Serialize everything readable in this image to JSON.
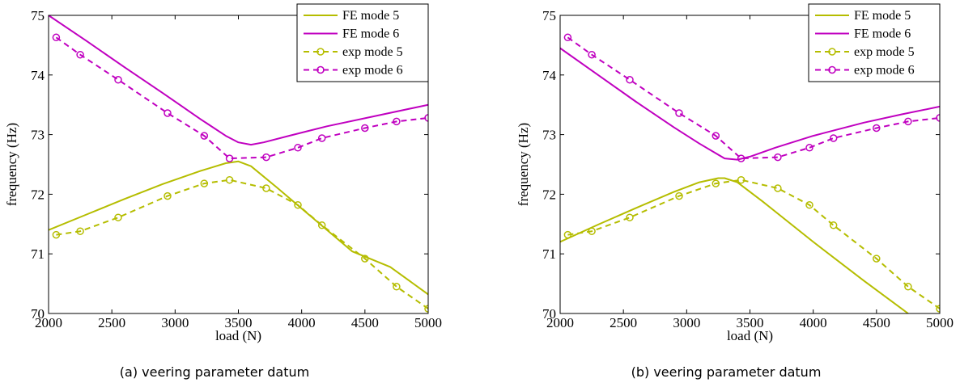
{
  "colors": {
    "mode5": "#b5bd00",
    "mode6": "#c000c0"
  },
  "chart_data": [
    {
      "type": "line",
      "caption": "(a) veering parameter datum",
      "xlabel": "load (N)",
      "ylabel": "frequency (Hz)",
      "xlim": [
        2000,
        5000
      ],
      "ylim": [
        70,
        75
      ],
      "xticks": [
        2000,
        2500,
        3000,
        3500,
        4000,
        4500,
        5000
      ],
      "yticks": [
        70,
        71,
        72,
        73,
        74,
        75
      ],
      "grid": false,
      "legend_position": "top-right",
      "series": [
        {
          "name": "FE mode 5",
          "style": "solid",
          "marker": "none",
          "color_key": "mode5",
          "x": [
            2000,
            2300,
            2600,
            2900,
            3200,
            3400,
            3500,
            3600,
            3800,
            4100,
            4400,
            4700,
            5000
          ],
          "y": [
            71.4,
            71.66,
            71.92,
            72.17,
            72.39,
            72.52,
            72.55,
            72.47,
            72.12,
            71.58,
            71.04,
            70.78,
            70.32
          ]
        },
        {
          "name": "FE mode 6",
          "style": "solid",
          "marker": "none",
          "color_key": "mode6",
          "x": [
            2000,
            2300,
            2600,
            2900,
            3200,
            3400,
            3500,
            3600,
            3700,
            3900,
            4200,
            4600,
            5000
          ],
          "y": [
            75.0,
            74.57,
            74.13,
            73.7,
            73.26,
            72.98,
            72.87,
            72.83,
            72.87,
            72.98,
            73.14,
            73.32,
            73.5
          ]
        },
        {
          "name": "exp mode 5",
          "style": "dashed",
          "marker": "circle",
          "color_key": "mode5",
          "x": [
            2060,
            2250,
            2550,
            2940,
            3230,
            3430,
            3720,
            3970,
            4160,
            4500,
            4750,
            5000
          ],
          "y": [
            71.32,
            71.38,
            71.61,
            71.97,
            72.18,
            72.24,
            72.1,
            71.82,
            71.48,
            70.92,
            70.45,
            70.08
          ]
        },
        {
          "name": "exp mode 6",
          "style": "dashed",
          "marker": "circle",
          "color_key": "mode6",
          "x": [
            2060,
            2250,
            2550,
            2940,
            3230,
            3430,
            3720,
            3970,
            4160,
            4500,
            4750,
            5000
          ],
          "y": [
            74.63,
            74.34,
            73.92,
            73.36,
            72.98,
            72.6,
            72.62,
            72.78,
            72.94,
            73.11,
            73.22,
            73.28
          ]
        }
      ]
    },
    {
      "type": "line",
      "caption": "(b) veering parameter datum",
      "xlabel": "load (N)",
      "ylabel": "frequency (Hz)",
      "xlim": [
        2000,
        5000
      ],
      "ylim": [
        70,
        75
      ],
      "xticks": [
        2000,
        2500,
        3000,
        3500,
        4000,
        4500,
        5000
      ],
      "yticks": [
        70,
        71,
        72,
        73,
        74,
        75
      ],
      "grid": false,
      "legend_position": "top-right",
      "series": [
        {
          "name": "FE mode 5",
          "style": "solid",
          "marker": "none",
          "color_key": "mode5",
          "x": [
            2000,
            2300,
            2600,
            2900,
            3100,
            3250,
            3300,
            3400,
            3600,
            4000,
            4400,
            4750
          ],
          "y": [
            71.2,
            71.49,
            71.77,
            72.04,
            72.2,
            72.27,
            72.27,
            72.2,
            71.88,
            71.2,
            70.55,
            70.0
          ]
        },
        {
          "name": "FE mode 6",
          "style": "solid",
          "marker": "none",
          "color_key": "mode6",
          "x": [
            2000,
            2300,
            2600,
            2900,
            3100,
            3300,
            3400,
            3500,
            3700,
            4000,
            4400,
            4700,
            5000
          ],
          "y": [
            74.45,
            74.0,
            73.55,
            73.12,
            72.85,
            72.6,
            72.58,
            72.63,
            72.78,
            72.98,
            73.2,
            73.34,
            73.47
          ]
        },
        {
          "name": "exp mode 5",
          "style": "dashed",
          "marker": "circle",
          "color_key": "mode5",
          "x": [
            2060,
            2250,
            2550,
            2940,
            3230,
            3430,
            3720,
            3970,
            4160,
            4500,
            4750,
            5000
          ],
          "y": [
            71.32,
            71.38,
            71.61,
            71.97,
            72.18,
            72.24,
            72.1,
            71.82,
            71.48,
            70.92,
            70.45,
            70.08
          ]
        },
        {
          "name": "exp mode 6",
          "style": "dashed",
          "marker": "circle",
          "color_key": "mode6",
          "x": [
            2060,
            2250,
            2550,
            2940,
            3230,
            3430,
            3720,
            3970,
            4160,
            4500,
            4750,
            5000
          ],
          "y": [
            74.63,
            74.34,
            73.92,
            73.36,
            72.98,
            72.6,
            72.62,
            72.78,
            72.94,
            73.11,
            73.22,
            73.28
          ]
        }
      ]
    }
  ]
}
